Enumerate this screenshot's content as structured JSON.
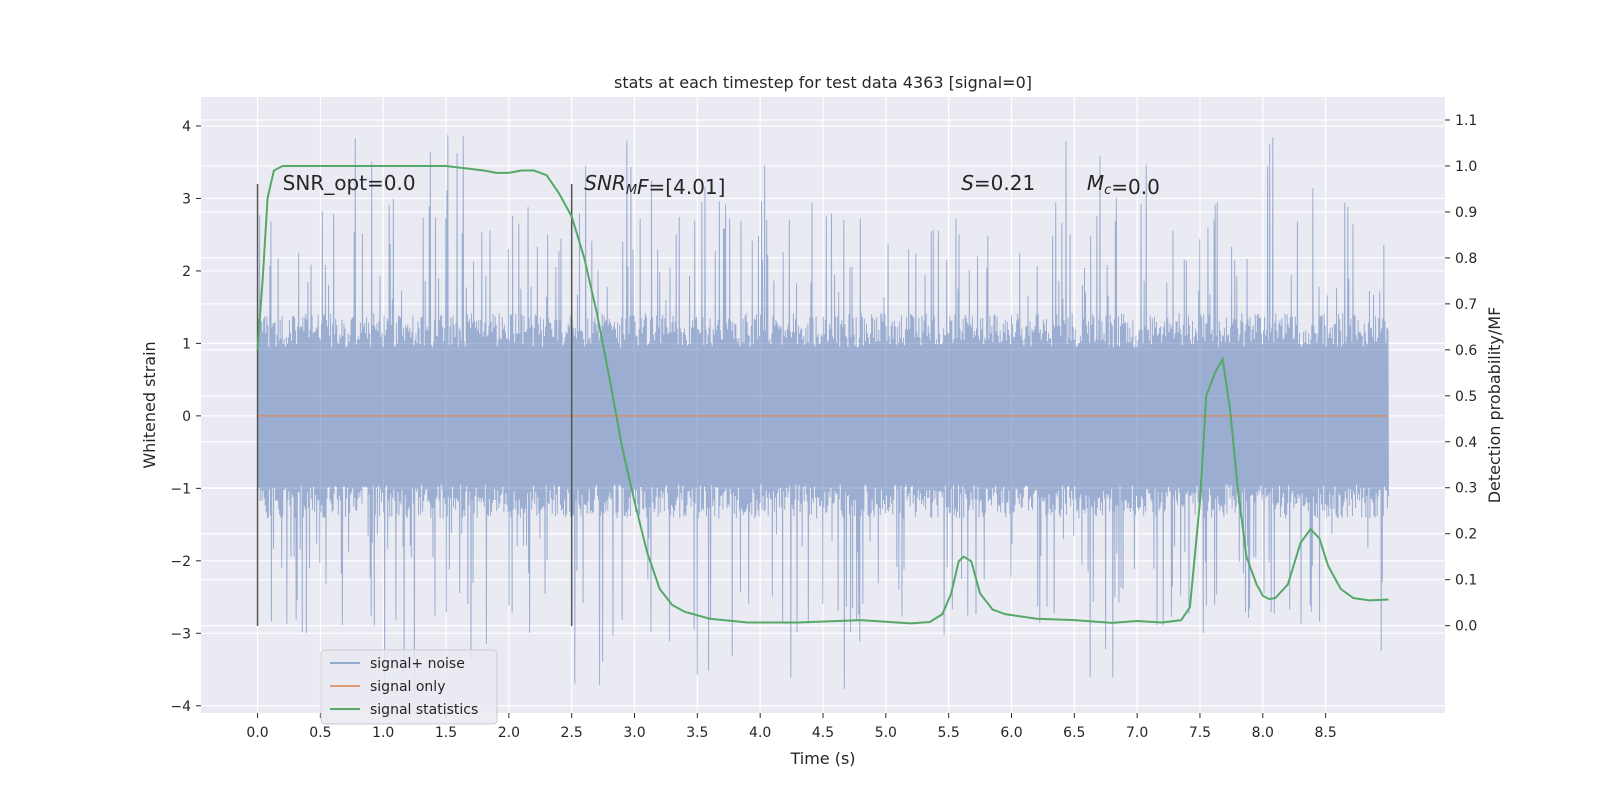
{
  "chart_data": {
    "type": "line",
    "title": "stats at each timestep for test data 4363 [signal=0]",
    "xlabel": "Time (s)",
    "ylabel": "Whitened strain",
    "ylabel_right": "Detection probability/MF",
    "xlim": [
      -0.45,
      9.45
    ],
    "ylim": [
      -4.1,
      4.4
    ],
    "ylim_right": [
      -0.19,
      1.15
    ],
    "x_ticks": [
      0.0,
      0.5,
      1.0,
      1.5,
      2.0,
      2.5,
      3.0,
      3.5,
      4.0,
      4.5,
      5.0,
      5.5,
      6.0,
      6.5,
      7.0,
      7.5,
      8.0,
      8.5
    ],
    "x_tick_labels": [
      "0.0",
      "0.5",
      "1.0",
      "1.5",
      "2.0",
      "2.5",
      "3.0",
      "3.5",
      "4.0",
      "4.5",
      "5.0",
      "5.5",
      "6.0",
      "6.5",
      "7.0",
      "7.5",
      "8.0",
      "8.5"
    ],
    "y_ticks": [
      -4,
      -3,
      -2,
      -1,
      0,
      1,
      2,
      3,
      4
    ],
    "y_tick_labels": [
      "−4",
      "−3",
      "−2",
      "−1",
      "0",
      "1",
      "2",
      "3",
      "4"
    ],
    "y_right_ticks": [
      0.0,
      0.1,
      0.2,
      0.3,
      0.4,
      0.5,
      0.6,
      0.7,
      0.8,
      0.9,
      1.0,
      1.1
    ],
    "y_right_tick_labels": [
      "0.0",
      "0.1",
      "0.2",
      "0.3",
      "0.4",
      "0.5",
      "0.6",
      "0.7",
      "0.8",
      "0.9",
      "1.0",
      "1.1"
    ],
    "grid": true,
    "legend_position": "bottom-left",
    "series": [
      {
        "name": "signal+ noise",
        "color": "#4c72b0",
        "kind": "noise",
        "x_range": [
          0.0,
          9.0
        ],
        "typical_amplitude": 1.35,
        "max_amplitude": 4.0,
        "min_amplitude": -3.7
      },
      {
        "name": "signal only",
        "color": "#dd8452",
        "kind": "line",
        "x": [
          0.0,
          9.0
        ],
        "y": [
          0.0,
          0.0
        ]
      },
      {
        "name": "signal statistics",
        "color": "#55a868",
        "kind": "line",
        "axis": "right",
        "x": [
          0.0,
          0.04,
          0.08,
          0.13,
          0.2,
          0.3,
          0.5,
          1.0,
          1.5,
          1.8,
          1.9,
          2.0,
          2.1,
          2.2,
          2.3,
          2.4,
          2.5,
          2.6,
          2.7,
          2.8,
          2.9,
          3.0,
          3.1,
          3.2,
          3.3,
          3.4,
          3.6,
          3.9,
          4.3,
          4.8,
          5.2,
          5.35,
          5.45,
          5.52,
          5.58,
          5.62,
          5.68,
          5.75,
          5.85,
          5.95,
          6.2,
          6.5,
          6.8,
          7.0,
          7.2,
          7.35,
          7.42,
          7.5,
          7.55,
          7.62,
          7.68,
          7.74,
          7.8,
          7.87,
          7.95,
          8.0,
          8.05,
          8.1,
          8.2,
          8.3,
          8.38,
          8.45,
          8.52,
          8.62,
          8.72,
          8.85,
          9.0
        ],
        "y": [
          0.6,
          0.75,
          0.93,
          0.99,
          1.0,
          1.0,
          1.0,
          1.0,
          1.0,
          0.99,
          0.985,
          0.985,
          0.99,
          0.99,
          0.98,
          0.94,
          0.89,
          0.8,
          0.68,
          0.54,
          0.39,
          0.27,
          0.16,
          0.08,
          0.045,
          0.03,
          0.015,
          0.007,
          0.007,
          0.012,
          0.005,
          0.008,
          0.025,
          0.07,
          0.14,
          0.15,
          0.14,
          0.07,
          0.035,
          0.025,
          0.015,
          0.012,
          0.006,
          0.01,
          0.007,
          0.012,
          0.04,
          0.27,
          0.5,
          0.55,
          0.58,
          0.47,
          0.3,
          0.15,
          0.09,
          0.065,
          0.058,
          0.06,
          0.09,
          0.18,
          0.21,
          0.19,
          0.13,
          0.08,
          0.06,
          0.055,
          0.057
        ]
      }
    ],
    "vertical_markers": [
      {
        "x": 0.0,
        "y_range": [
          -2.9,
          3.2
        ]
      },
      {
        "x": 2.5,
        "y_range": [
          -2.9,
          3.2
        ]
      }
    ],
    "annotations": [
      {
        "id": "snr_opt",
        "prefix": "SNR_opt",
        "value": "=0.0",
        "x": 0.2,
        "y": 3.2
      },
      {
        "id": "snr_mf",
        "prefix": "SNR",
        "sub": "M",
        "suffix": "F",
        "value": "=[4.01]",
        "x": 2.6,
        "y": 3.2
      },
      {
        "id": "s",
        "prefix": "S",
        "value": "=0.21",
        "x": 5.6,
        "y": 3.2
      },
      {
        "id": "mc",
        "prefix": "M",
        "sub": "c",
        "value": "=0.0",
        "x": 6.6,
        "y": 3.2
      }
    ]
  }
}
